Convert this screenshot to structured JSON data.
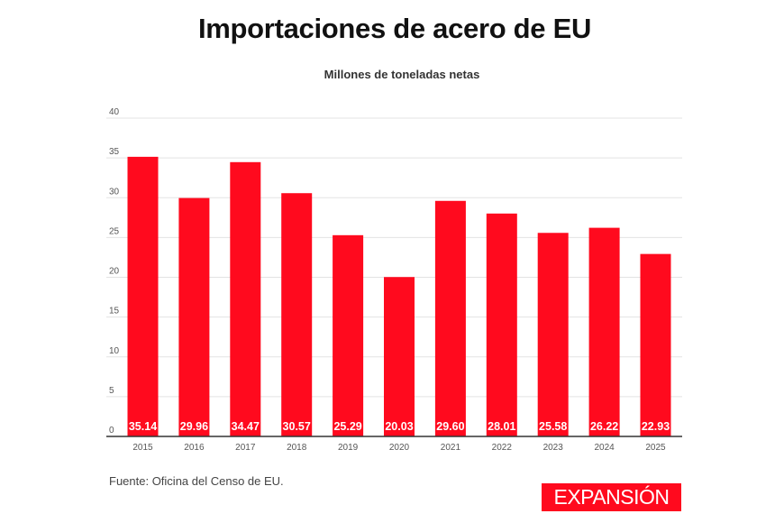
{
  "chart_data": {
    "type": "bar",
    "title": "Importaciones de acero de EU",
    "subtitle": "Millones de toneladas netas",
    "xlabel": "",
    "ylabel": "",
    "categories": [
      "2015",
      "2016",
      "2017",
      "2018",
      "2019",
      "2020",
      "2021",
      "2022",
      "2023",
      "2024",
      "2025"
    ],
    "values": [
      35.14,
      29.96,
      34.47,
      30.57,
      25.29,
      20.03,
      29.6,
      28.01,
      25.58,
      26.22,
      22.93
    ],
    "value_labels": [
      "35.14",
      "29.96",
      "34.47",
      "30.57",
      "25.29",
      "20.03",
      "29.60",
      "28.01",
      "25.58",
      "26.22",
      "22.93"
    ],
    "ylim": [
      0,
      40
    ],
    "yticks": [
      0,
      5,
      10,
      15,
      20,
      25,
      30,
      35,
      40
    ],
    "ytick_labels": [
      "0",
      "5",
      "10",
      "15",
      "20",
      "25",
      "30",
      "35",
      "40"
    ],
    "grid": true,
    "legend": "none",
    "bar_color": "#ff0a1e",
    "label_color": "#ffffff"
  },
  "footer": {
    "source": "Fuente: Oficina del Censo de EU.",
    "logo_text": "EXPANSIÓN"
  }
}
